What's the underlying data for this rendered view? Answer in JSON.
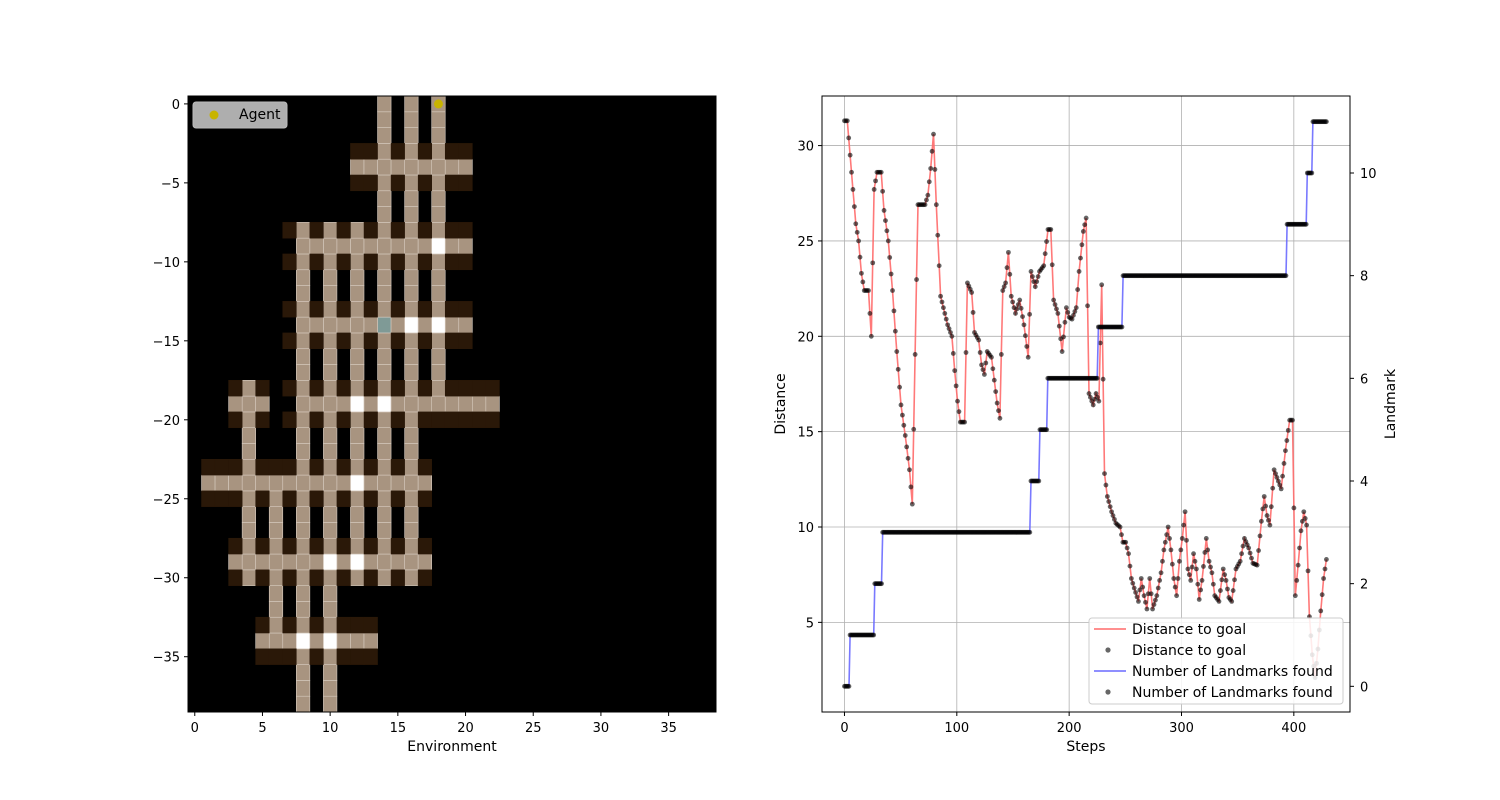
{
  "chart_data": [
    {
      "type": "heatmap",
      "title": "",
      "xlabel": "Environment",
      "ylabel": "",
      "xlim": [
        -0.5,
        38.5
      ],
      "ylim": [
        -38.5,
        0.5
      ],
      "xticks": [
        0,
        5,
        10,
        15,
        20,
        25,
        30,
        35
      ],
      "yticks": [
        0,
        -5,
        -10,
        -15,
        -20,
        -25,
        -30,
        -35
      ],
      "legend": {
        "entries": [
          "Agent"
        ],
        "location": "upper-left"
      },
      "agent": {
        "x": 18,
        "y": 0,
        "color": "#c8b400"
      },
      "colors": {
        "background": "#000000",
        "road": "#a89480",
        "corner": "#2a1808",
        "landmark": "#ffffff",
        "goal": "#7f9a96"
      },
      "corridors": {
        "vertical": [
          {
            "x": 14,
            "y": [
              0,
              -8
            ]
          },
          {
            "x": 16,
            "y": [
              0,
              -8
            ]
          },
          {
            "x": 18,
            "y": [
              0,
              -8
            ]
          },
          {
            "x": 8,
            "y": [
              -8,
              -38
            ]
          },
          {
            "x": 10,
            "y": [
              -8,
              -38
            ]
          },
          {
            "x": 12,
            "y": [
              -8,
              -30
            ]
          },
          {
            "x": 14,
            "y": [
              -8,
              -30
            ]
          },
          {
            "x": 16,
            "y": [
              -8,
              -30
            ]
          },
          {
            "x": 18,
            "y": [
              -8,
              -19
            ]
          },
          {
            "x": 4,
            "y": [
              -18,
              -30
            ]
          },
          {
            "x": 6,
            "y": [
              -24,
              -34
            ]
          }
        ],
        "horizontal": [
          {
            "y": -4,
            "x": [
              12,
              20
            ]
          },
          {
            "y": -9,
            "x": [
              8,
              20
            ]
          },
          {
            "y": -14,
            "x": [
              8,
              20
            ]
          },
          {
            "y": -19,
            "x": [
              3,
              5
            ]
          },
          {
            "y": -19,
            "x": [
              8,
              22
            ]
          },
          {
            "y": -24,
            "x": [
              1,
              17
            ]
          },
          {
            "y": -29,
            "x": [
              3,
              17
            ]
          },
          {
            "y": -34,
            "x": [
              5,
              13
            ]
          }
        ]
      },
      "landmarks": [
        [
          18,
          -9
        ],
        [
          16,
          -14
        ],
        [
          18,
          -14
        ],
        [
          12,
          -19
        ],
        [
          14,
          -19
        ],
        [
          12,
          -24
        ],
        [
          10,
          -29
        ],
        [
          12,
          -29
        ],
        [
          8,
          -34
        ],
        [
          10,
          -34
        ]
      ],
      "goal": [
        14,
        -14
      ]
    },
    {
      "type": "line",
      "title": "",
      "xlabel": "Steps",
      "ylabel": "Distance",
      "y2label": "Landmark",
      "xlim": [
        -20,
        450
      ],
      "ylim": [
        0.3,
        32.6
      ],
      "y2lim": [
        -0.5,
        11.5
      ],
      "xticks": [
        0,
        100,
        200,
        300,
        400
      ],
      "yticks": [
        5,
        10,
        15,
        20,
        25,
        30
      ],
      "y2ticks": [
        0,
        2,
        4,
        6,
        8,
        10
      ],
      "grid": true,
      "legend": {
        "location": "lower-right",
        "entries": [
          "Distance to goal",
          "Distance to goal",
          "Number of Landmarks found",
          "Number of Landmarks found"
        ]
      },
      "series": [
        {
          "name": "Distance to goal",
          "axis": "left",
          "color": "#ff6a6a",
          "keypoints": [
            [
              0,
              31.3
            ],
            [
              2,
              31.3
            ],
            [
              3,
              30.4
            ],
            [
              6,
              27.7
            ],
            [
              8,
              25.9
            ],
            [
              10,
              25
            ],
            [
              12,
              23.3
            ],
            [
              14,
              22.4
            ],
            [
              17,
              22.4
            ],
            [
              19,
              20
            ],
            [
              21,
              27.7
            ],
            [
              23,
              28.6
            ],
            [
              26,
              28.6
            ],
            [
              28,
              26.6
            ],
            [
              31,
              25
            ],
            [
              34,
              22.4
            ],
            [
              37,
              19.2
            ],
            [
              40,
              16.4
            ],
            [
              43,
              14.8
            ],
            [
              46,
              13
            ],
            [
              48,
              11.2
            ],
            [
              52,
              26.9
            ],
            [
              55,
              26.9
            ],
            [
              57,
              26.9
            ],
            [
              59,
              27.4
            ],
            [
              61,
              28.8
            ],
            [
              63,
              30.6
            ],
            [
              65,
              26.9
            ],
            [
              68,
              22.1
            ],
            [
              71,
              21.2
            ],
            [
              73,
              20.6
            ],
            [
              76,
              20
            ],
            [
              78,
              18.2
            ],
            [
              80,
              16.6
            ],
            [
              82,
              15.5
            ],
            [
              85,
              15.5
            ],
            [
              87,
              22.8
            ],
            [
              90,
              22.3
            ],
            [
              92,
              20.2
            ],
            [
              95,
              19.8
            ],
            [
              97,
              18.5
            ],
            [
              99,
              18
            ],
            [
              101,
              19.2
            ],
            [
              104,
              18.9
            ],
            [
              106,
              17.7
            ],
            [
              108,
              16.5
            ],
            [
              110,
              15.7
            ],
            [
              112,
              22.4
            ],
            [
              114,
              22.8
            ],
            [
              116,
              24.4
            ],
            [
              118,
              22.1
            ],
            [
              121,
              21.2
            ],
            [
              124,
              21.9
            ],
            [
              127,
              20.6
            ],
            [
              130,
              18.9
            ],
            [
              132,
              23.4
            ],
            [
              135,
              22.6
            ],
            [
              138,
              23.4
            ],
            [
              141,
              23.7
            ],
            [
              144,
              25.6
            ],
            [
              146,
              25.6
            ],
            [
              148,
              21.9
            ],
            [
              151,
              21.2
            ],
            [
              154,
              19.2
            ],
            [
              157,
              21.5
            ],
            [
              159,
              21
            ],
            [
              161,
              20.9
            ],
            [
              164,
              21.5
            ],
            [
              166,
              23.4
            ],
            [
              169,
              25.5
            ],
            [
              171,
              26.2
            ],
            [
              173,
              17
            ],
            [
              176,
              16.4
            ],
            [
              178,
              17
            ],
            [
              180,
              16.6
            ],
            [
              182,
              22.7
            ],
            [
              184,
              12.8
            ],
            [
              186,
              11.6
            ],
            [
              189,
              10.8
            ],
            [
              192,
              10.2
            ],
            [
              195,
              10
            ],
            [
              197,
              9.2
            ],
            [
              199,
              9.2
            ],
            [
              201,
              8.6
            ],
            [
              203,
              7.3
            ],
            [
              205,
              6.8
            ],
            [
              208,
              6.1
            ],
            [
              210,
              7.3
            ],
            [
              212,
              6.4
            ],
            [
              214,
              5.7
            ],
            [
              216,
              7.3
            ],
            [
              218,
              5.7
            ],
            [
              221,
              6.4
            ],
            [
              224,
              7.6
            ],
            [
              226,
              8.8
            ],
            [
              229,
              10
            ],
            [
              231,
              8.8
            ],
            [
              233,
              7.3
            ],
            [
              235,
              6.4
            ],
            [
              237,
              8.2
            ],
            [
              239,
              9.4
            ],
            [
              241,
              10.8
            ],
            [
              243,
              7.8
            ],
            [
              245,
              7.2
            ],
            [
              247,
              8.6
            ],
            [
              249,
              7.8
            ],
            [
              251,
              6.2
            ],
            [
              253,
              7.2
            ],
            [
              256,
              9.4
            ],
            [
              258,
              8.2
            ],
            [
              260,
              7.6
            ],
            [
              262,
              6.4
            ],
            [
              265,
              6.1
            ],
            [
              268,
              7.8
            ],
            [
              270,
              7.2
            ],
            [
              272,
              6.3
            ],
            [
              274,
              6.1
            ],
            [
              277,
              7.8
            ],
            [
              280,
              8.2
            ],
            [
              283,
              9.4
            ],
            [
              286,
              8.9
            ],
            [
              289,
              8.1
            ],
            [
              292,
              8
            ],
            [
              295,
              10.3
            ],
            [
              297,
              11.6
            ],
            [
              299,
              10.6
            ],
            [
              301,
              10.1
            ],
            [
              304,
              13
            ],
            [
              307,
              12.4
            ],
            [
              309,
              12
            ],
            [
              312,
              14
            ],
            [
              315,
              15.6
            ],
            [
              317,
              15.6
            ],
            [
              319,
              6.4
            ],
            [
              321,
              8
            ],
            [
              323,
              9.8
            ],
            [
              325,
              10.8
            ],
            [
              327,
              10.1
            ],
            [
              329,
              5.3
            ],
            [
              331,
              3.3
            ],
            [
              333,
              2.1
            ],
            [
              335,
              3.6
            ],
            [
              337,
              5.6
            ],
            [
              339,
              7.3
            ],
            [
              341,
              8.3
            ]
          ]
        },
        {
          "name": "Number of Landmarks found",
          "axis": "right",
          "color": "#6a6aff",
          "steps": [
            [
              0,
              0
            ],
            [
              5,
              1
            ],
            [
              27,
              2
            ],
            [
              34,
              3
            ],
            [
              166,
              4
            ],
            [
              174,
              5
            ],
            [
              181,
              6
            ],
            [
              226,
              7
            ],
            [
              248,
              8
            ],
            [
              394,
              9
            ],
            [
              412,
              10
            ],
            [
              417,
              11
            ],
            [
              429,
              11
            ]
          ]
        }
      ]
    }
  ]
}
